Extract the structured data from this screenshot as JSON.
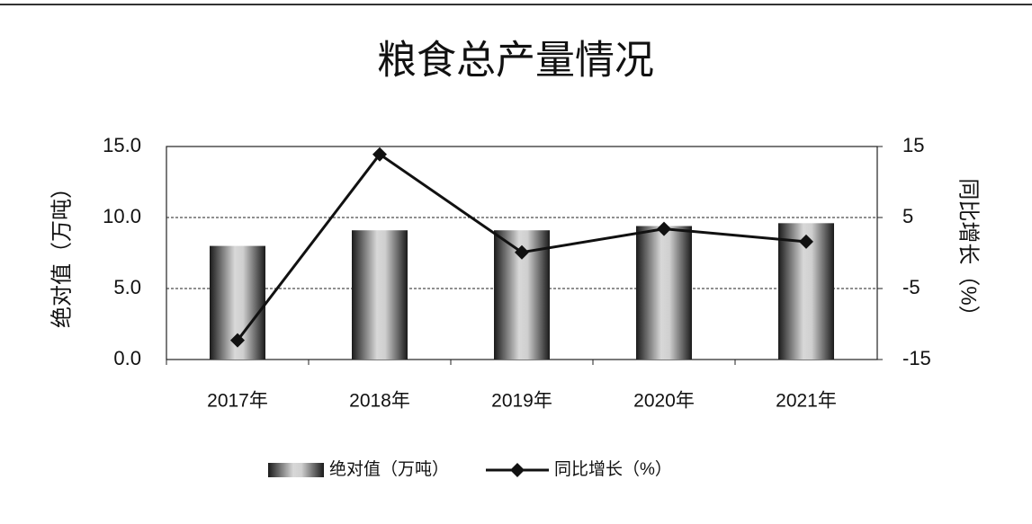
{
  "chart_data": {
    "type": "bar",
    "title": "粮食总产量情况",
    "y_label": "绝对值（万吨）",
    "y2_label": "同比增长（%）",
    "categories": [
      "2017年",
      "2018年",
      "2019年",
      "2020年",
      "2021年"
    ],
    "series": [
      {
        "name": "绝对值（万吨）",
        "type": "bar",
        "color": "#555555",
        "values": [
          8.0,
          9.1,
          9.1,
          9.4,
          9.6
        ]
      },
      {
        "name": "同比增长（%）",
        "type": "line",
        "axis": "y2",
        "color": "#111111",
        "values": [
          -12.3,
          13.9,
          0.1,
          3.4,
          1.6
        ]
      }
    ],
    "ylim": [
      0,
      15
    ],
    "yticks": [
      {
        "value": 0,
        "label": "0.0"
      },
      {
        "value": 5,
        "label": "5.0"
      },
      {
        "value": 10,
        "label": "10.0"
      },
      {
        "value": 15,
        "label": "15.0"
      }
    ],
    "y2lim": [
      -15,
      15
    ],
    "y2ticks": [
      -15,
      -5,
      5,
      15
    ],
    "grid": true,
    "legend": "bottom"
  }
}
